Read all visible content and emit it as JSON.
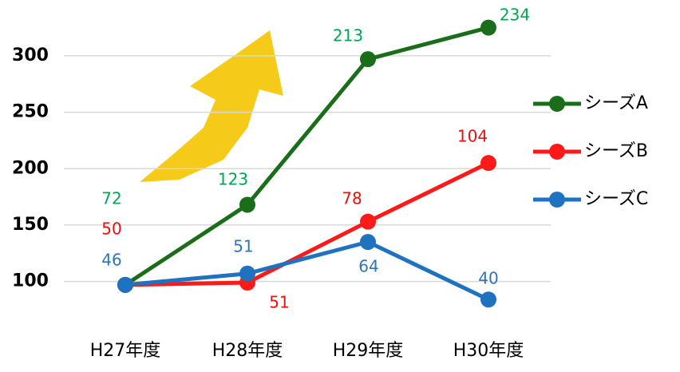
{
  "chart_data": {
    "type": "line",
    "categories": [
      "H27年度",
      "H28年度",
      "H29年度",
      "H30年度"
    ],
    "series": [
      {
        "name": "シーズA",
        "color": "#1a6e1a",
        "label_color": "#00a651",
        "values": [
          97,
          168,
          297,
          325
        ],
        "counts": [
          72,
          123,
          213,
          234
        ]
      },
      {
        "name": "シーズB",
        "color": "#ff1a1a",
        "label_color": "#e81010",
        "values": [
          97,
          99,
          153,
          205
        ],
        "counts": [
          50,
          51,
          78,
          104
        ]
      },
      {
        "name": "シーズC",
        "color": "#1f72c0",
        "label_color": "#2e75b6",
        "values": [
          97,
          107,
          135,
          84
        ],
        "counts": [
          46,
          51,
          64,
          40
        ]
      }
    ],
    "ylim": [
      70,
      330
    ],
    "yticks": [
      100,
      150,
      200,
      250,
      300
    ],
    "grid": true,
    "legend": "right"
  }
}
